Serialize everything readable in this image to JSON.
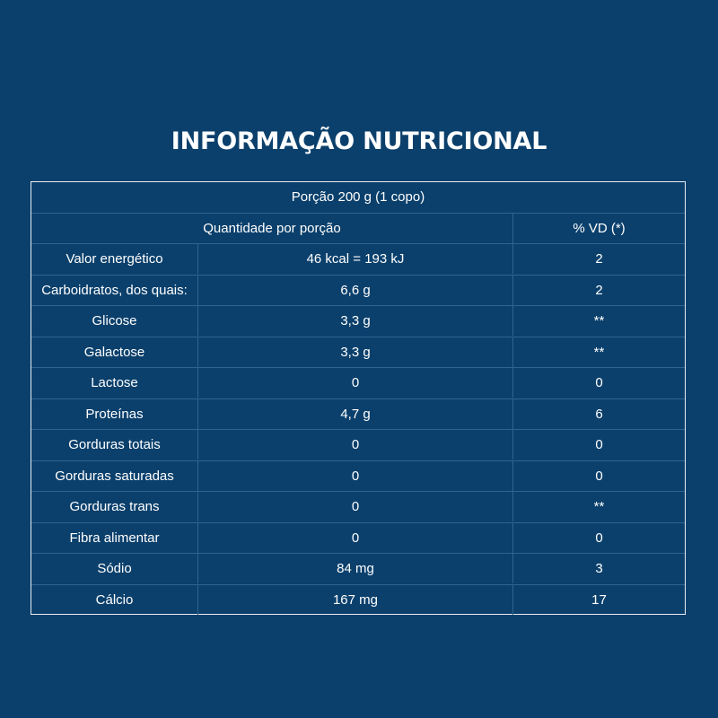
{
  "title": "INFORMAÇÃO NUTRICIONAL",
  "table": {
    "portion": "Porção 200 g (1 copo)",
    "header_quantity": "Quantidade por porção",
    "header_vd": "% VD (*)",
    "rows": [
      {
        "nutrient": "Valor energético",
        "amount": "46 kcal = 193 kJ",
        "vd": "2"
      },
      {
        "nutrient": "Carboidratos, dos quais:",
        "amount": "6,6 g",
        "vd": "2"
      },
      {
        "nutrient": "Glicose",
        "amount": "3,3 g",
        "vd": "**"
      },
      {
        "nutrient": "Galactose",
        "amount": "3,3 g",
        "vd": "**"
      },
      {
        "nutrient": "Lactose",
        "amount": "0",
        "vd": "0"
      },
      {
        "nutrient": "Proteínas",
        "amount": "4,7 g",
        "vd": "6"
      },
      {
        "nutrient": "Gorduras totais",
        "amount": "0",
        "vd": "0"
      },
      {
        "nutrient": "Gorduras saturadas",
        "amount": "0",
        "vd": "0"
      },
      {
        "nutrient": "Gorduras trans",
        "amount": "0",
        "vd": "**"
      },
      {
        "nutrient": "Fibra alimentar",
        "amount": "0",
        "vd": "0"
      },
      {
        "nutrient": "Sódio",
        "amount": "84 mg",
        "vd": "3"
      },
      {
        "nutrient": "Cálcio",
        "amount": "167 mg",
        "vd": "17"
      }
    ]
  },
  "colors": {
    "background": "#0b406c",
    "text": "#ffffff",
    "grid_line": "#2f6390",
    "outer_border": "#e8eef5"
  }
}
